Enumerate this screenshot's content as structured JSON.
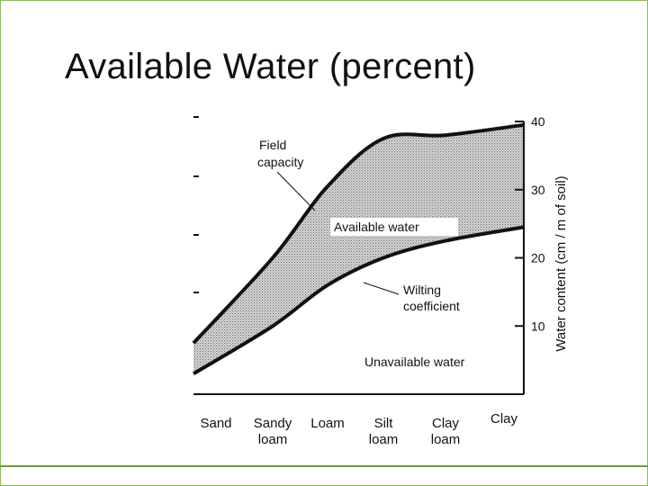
{
  "title": "Available Water (percent)",
  "chart_data": {
    "type": "area",
    "categories": [
      "Sand",
      "Sandy loam",
      "Loam",
      "Silt loam",
      "Clay loam",
      "Clay"
    ],
    "ylabel": "Water content (cm / m of soil)",
    "ylim": [
      0,
      40
    ],
    "yticks": [
      10,
      20,
      30,
      40
    ],
    "series": [
      {
        "name": "Field capacity",
        "values": [
          7.5,
          20,
          30.5,
          37.5,
          38,
          39.5
        ]
      },
      {
        "name": "Wilting coefficient",
        "values": [
          3,
          10,
          16,
          20,
          22.5,
          24.5
        ]
      }
    ],
    "annotations": [
      {
        "text": "Field capacity"
      },
      {
        "text": "Available water"
      },
      {
        "text": "Wilting coefficient"
      },
      {
        "text": "Unavailable water"
      }
    ],
    "colors": {
      "available_fill": "#c8c8c8",
      "line": "#111111"
    }
  }
}
